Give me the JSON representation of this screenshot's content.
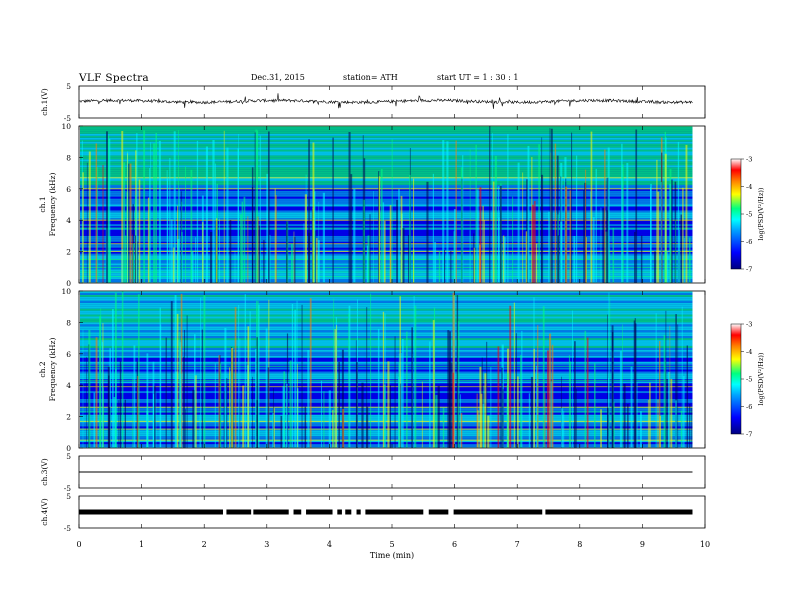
{
  "header": {
    "title": "VLF  Spectra",
    "date": "Dec.31, 2015",
    "station": "station= ATH",
    "start": "start  UT =   1  : 30 : 1"
  },
  "chart_data": [
    {
      "type": "line",
      "panel": "ch1-waveform",
      "ylabel": "ch.1(V)",
      "ylim": [
        -5,
        5
      ],
      "y_ticks": [
        "5",
        "-5"
      ],
      "baseline_value": 0.2,
      "color": "#000000"
    },
    {
      "type": "heatmap",
      "panel": "ch1-spectrogram",
      "ylabel_channel": "ch.1",
      "ylabel": "Frequency  (kHz)",
      "ylim": [
        0,
        10
      ],
      "y_ticks": [
        "0",
        "2",
        "4",
        "6",
        "8",
        "10"
      ],
      "colorbar": {
        "label": "log(PSD(V²/Hz))",
        "range": [
          -7,
          -3
        ],
        "ticks": [
          "-3",
          "-4",
          "-5",
          "-6",
          "-7"
        ]
      }
    },
    {
      "type": "heatmap",
      "panel": "ch2-spectrogram",
      "ylabel_channel": "ch.2",
      "ylabel": "Frequency  (kHz)",
      "ylim": [
        0,
        10
      ],
      "y_ticks": [
        "0",
        "2",
        "4",
        "6",
        "8",
        "10"
      ],
      "colorbar": {
        "label": "log(PSD(V²/Hz))",
        "range": [
          -7,
          -3
        ],
        "ticks": [
          "-3",
          "-4",
          "-5",
          "-6",
          "-7"
        ]
      }
    },
    {
      "type": "line",
      "panel": "ch3-waveform",
      "ylabel": "ch.3(V)",
      "ylim": [
        -5,
        5
      ],
      "y_ticks": [
        "5",
        "-5"
      ],
      "baseline_value": 0.0,
      "color": "#000000"
    },
    {
      "type": "line",
      "panel": "ch4-waveform",
      "ylabel": "ch.4(V)",
      "ylim": [
        -5,
        5
      ],
      "y_ticks": [
        "5",
        "-5"
      ],
      "baseline_value": 0.0,
      "color": "#000000"
    }
  ],
  "x_axis": {
    "label": "Time  (min)",
    "xlim": [
      0,
      10
    ],
    "ticks": [
      "0",
      "1",
      "2",
      "3",
      "4",
      "5",
      "6",
      "7",
      "8",
      "9",
      "10"
    ],
    "data_end": 9.8
  },
  "colormap": [
    "#000080",
    "#0000ff",
    "#00a0ff",
    "#00ffff",
    "#00ff80",
    "#ffff00",
    "#ff8000",
    "#ff0000",
    "#ffffff"
  ]
}
